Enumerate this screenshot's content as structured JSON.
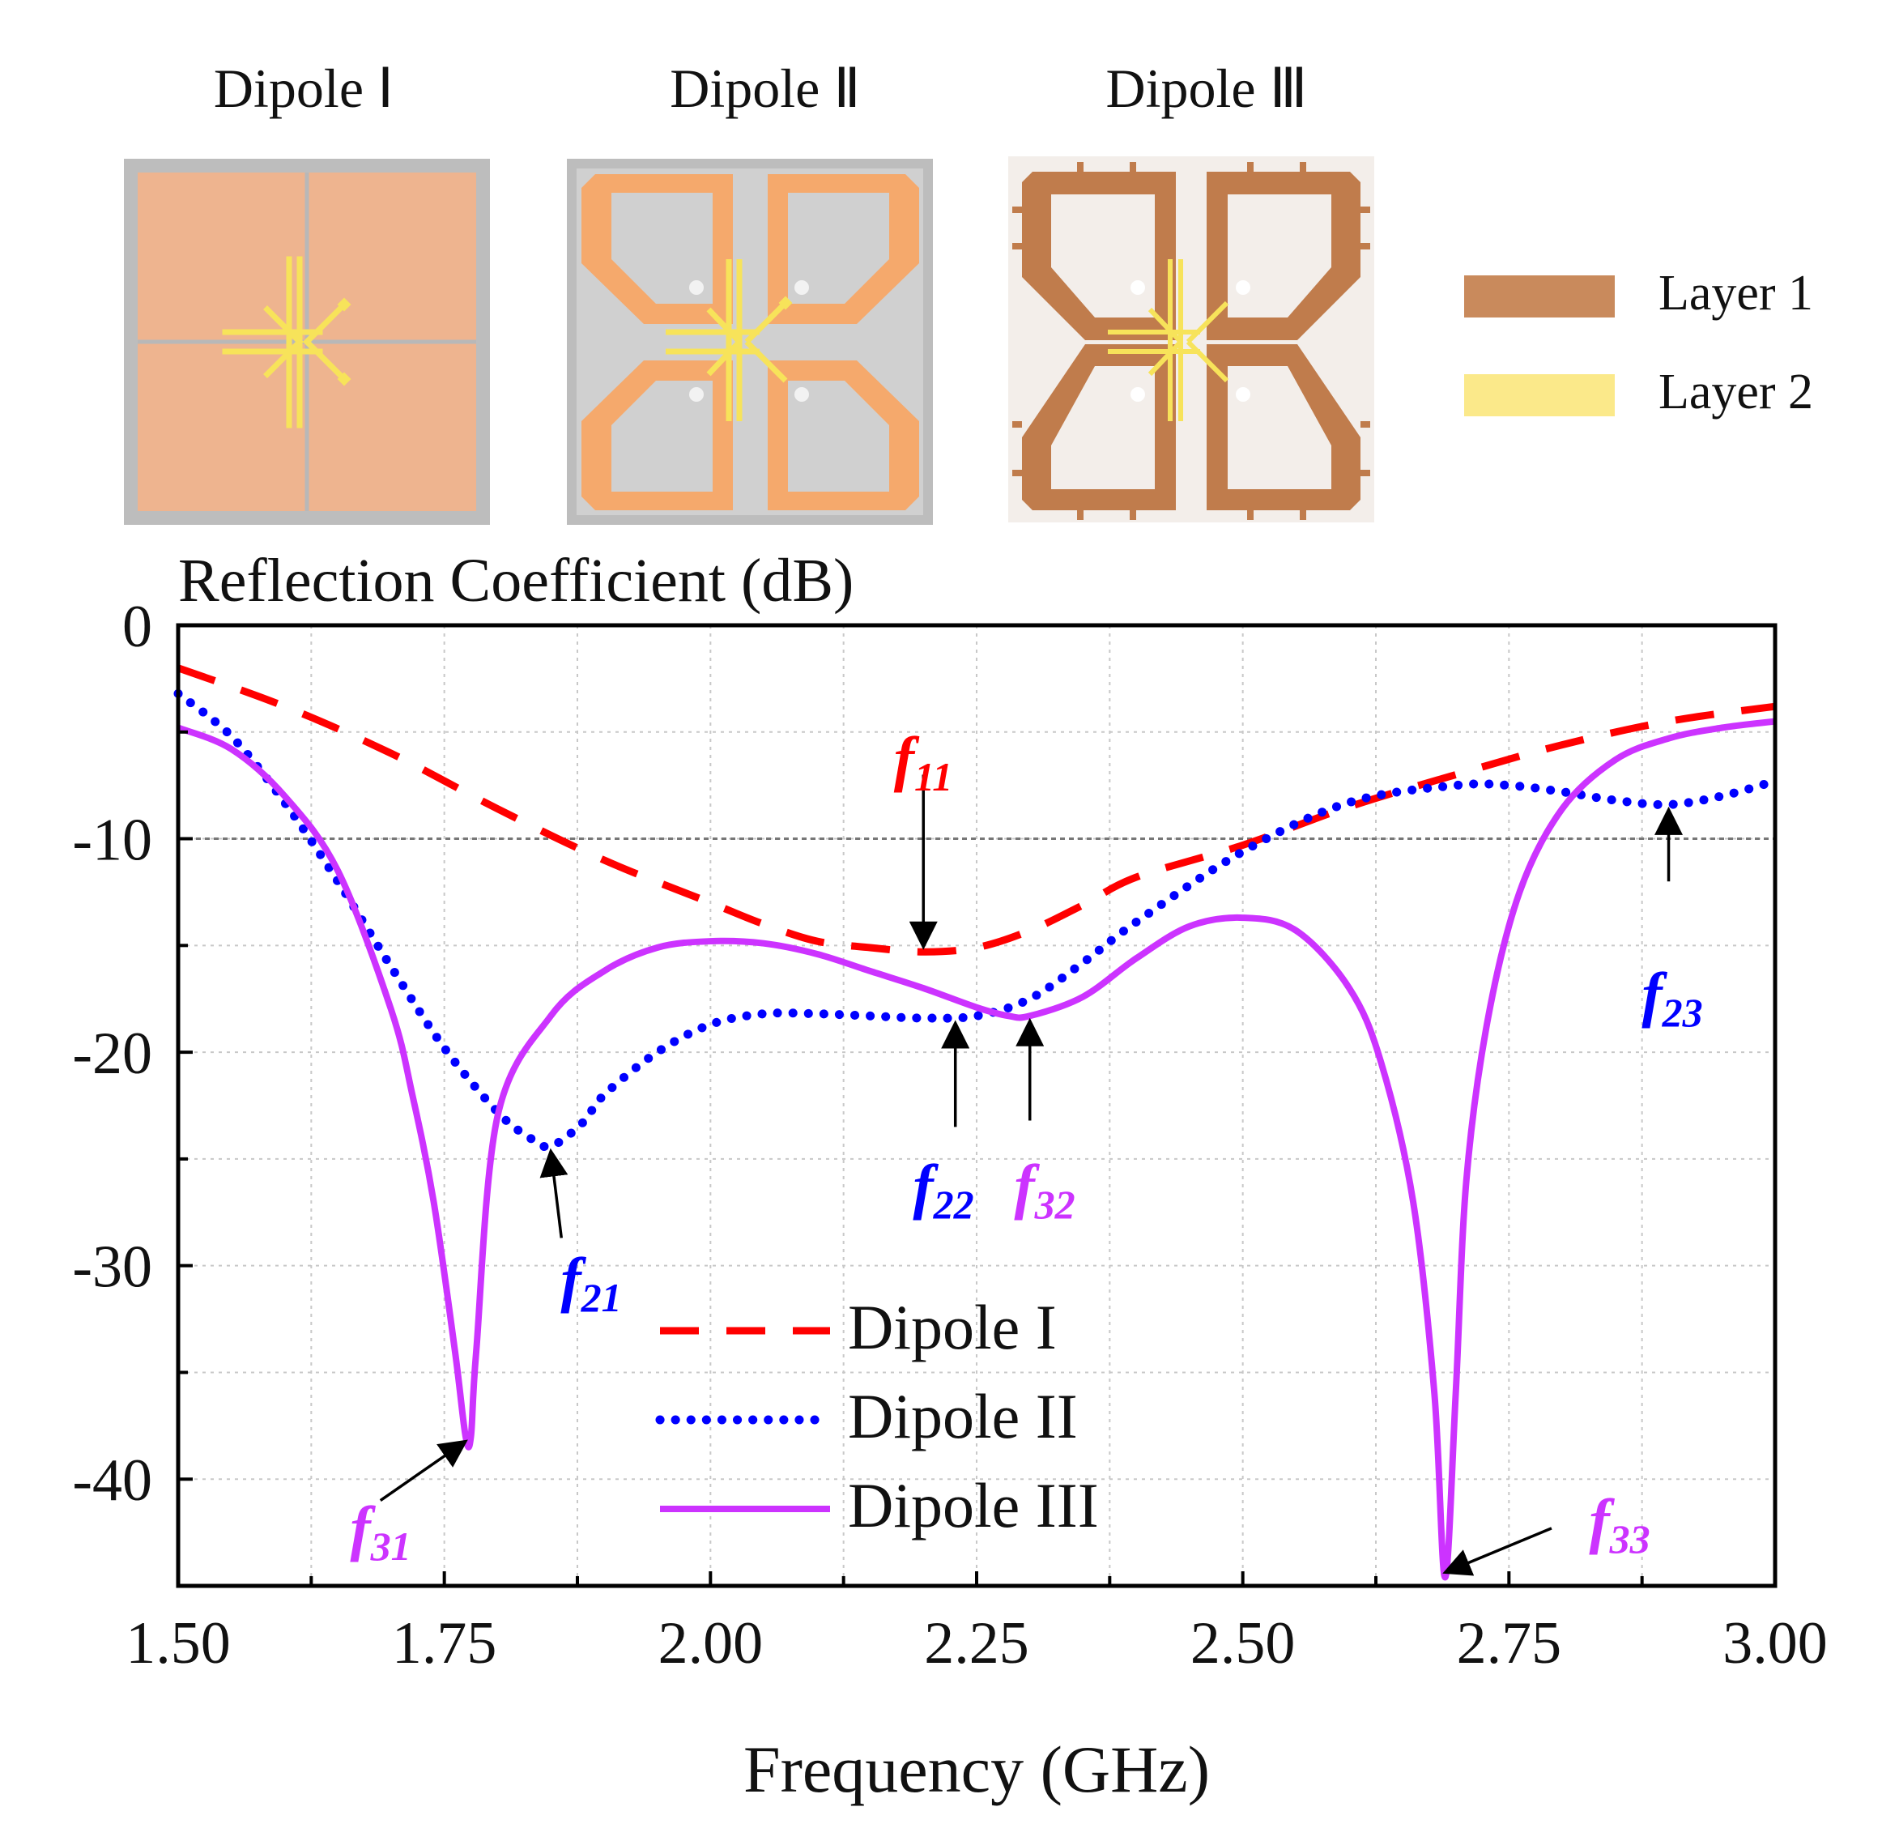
{
  "figure": {
    "panel_titles": [
      "Dipole Ⅰ",
      "Dipole Ⅱ",
      "Dipole Ⅲ"
    ],
    "layer_legend": [
      {
        "label": "Layer 1",
        "color": "#c98a5c"
      },
      {
        "label": "Layer 2",
        "color": "#fbe98a"
      }
    ],
    "colors": {
      "layer1_light": "#eeb48f",
      "layer1_orange": "#f5a96c",
      "layer1_dark": "#c07c4c",
      "layer2": "#f7e35a",
      "substrate_gray": "#bdbdbd",
      "substrate_light": "#f3eeea"
    }
  },
  "chart_data": {
    "type": "line",
    "title": "Reflection Coefficient (dB)",
    "xlabel": "Frequency (GHz)",
    "ylabel": "",
    "xlim": [
      1.5,
      3.0
    ],
    "ylim": [
      -45,
      0
    ],
    "xticks": [
      1.5,
      1.75,
      2.0,
      2.25,
      2.5,
      2.75,
      3.0
    ],
    "xtick_labels": [
      "1.50",
      "1.75",
      "2.00",
      "2.25",
      "2.50",
      "2.75",
      "3.00"
    ],
    "yticks": [
      0,
      -10,
      -20,
      -30,
      -40
    ],
    "ytick_labels": [
      "0",
      "-10",
      "-20",
      "-30",
      "-40"
    ],
    "grid": true,
    "reference_line": -10,
    "legend_position": "bottom-center",
    "series": [
      {
        "name": "Dipole I",
        "style": "dashed",
        "color": "#ff0000",
        "x": [
          1.5,
          1.6,
          1.7,
          1.8,
          1.9,
          2.0,
          2.05,
          2.1,
          2.15,
          2.2,
          2.25,
          2.3,
          2.35,
          2.4,
          2.5,
          2.6,
          2.7,
          2.8,
          2.9,
          3.0
        ],
        "y": [
          -2.0,
          -3.8,
          -6.0,
          -8.6,
          -11.0,
          -13.0,
          -14.0,
          -14.8,
          -15.1,
          -15.3,
          -15.1,
          -14.3,
          -13.1,
          -11.8,
          -10.3,
          -8.5,
          -7.0,
          -5.6,
          -4.5,
          -3.8
        ]
      },
      {
        "name": "Dipole II",
        "style": "dotted",
        "color": "#0000ff",
        "x": [
          1.5,
          1.55,
          1.6,
          1.65,
          1.7,
          1.75,
          1.8,
          1.83,
          1.85,
          1.88,
          1.9,
          1.95,
          2.0,
          2.05,
          2.1,
          2.15,
          2.2,
          2.25,
          2.3,
          2.35,
          2.4,
          2.5,
          2.6,
          2.7,
          2.75,
          2.8,
          2.85,
          2.9,
          2.95,
          3.0
        ],
        "y": [
          -3.2,
          -5.2,
          -8.3,
          -12.0,
          -16.0,
          -19.8,
          -22.8,
          -24.0,
          -24.4,
          -23.3,
          -22.0,
          -20.0,
          -18.7,
          -18.2,
          -18.2,
          -18.3,
          -18.4,
          -18.3,
          -17.5,
          -15.8,
          -13.9,
          -10.6,
          -8.3,
          -7.5,
          -7.5,
          -7.8,
          -8.2,
          -8.4,
          -8.0,
          -7.3
        ]
      },
      {
        "name": "Dipole III",
        "style": "solid",
        "color": "#cc33ff",
        "x": [
          1.5,
          1.55,
          1.6,
          1.65,
          1.7,
          1.72,
          1.74,
          1.76,
          1.77,
          1.775,
          1.78,
          1.8,
          1.85,
          1.9,
          1.95,
          2.0,
          2.05,
          2.1,
          2.15,
          2.2,
          2.25,
          2.28,
          2.3,
          2.35,
          2.4,
          2.45,
          2.5,
          2.55,
          2.6,
          2.63,
          2.66,
          2.68,
          2.69,
          2.7,
          2.71,
          2.73,
          2.76,
          2.8,
          2.85,
          2.9,
          2.95,
          3.0
        ],
        "y": [
          -4.8,
          -5.8,
          -8.0,
          -11.5,
          -18.0,
          -22.0,
          -27.0,
          -34.0,
          -38.0,
          -38.0,
          -34.0,
          -23.0,
          -18.3,
          -16.2,
          -15.1,
          -14.8,
          -14.9,
          -15.4,
          -16.2,
          -17.0,
          -17.9,
          -18.3,
          -18.3,
          -17.4,
          -15.6,
          -14.1,
          -13.7,
          -14.3,
          -17.0,
          -20.5,
          -27.0,
          -36.0,
          -44.6,
          -36.0,
          -26.0,
          -18.5,
          -12.5,
          -8.6,
          -6.3,
          -5.3,
          -4.8,
          -4.5
        ]
      }
    ],
    "annotations": [
      {
        "label": "f11",
        "main": "f",
        "sub": "11",
        "color": "#ff0000",
        "x": 2.2,
        "y": -15.3
      },
      {
        "label": "f21",
        "main": "f",
        "sub": "21",
        "color": "#0000ff",
        "x": 1.85,
        "y": -24.4
      },
      {
        "label": "f22",
        "main": "f",
        "sub": "22",
        "color": "#0000ff",
        "x": 2.23,
        "y": -18.4
      },
      {
        "label": "f23",
        "main": "f",
        "sub": "23",
        "color": "#0000ff",
        "x": 2.9,
        "y": -8.4
      },
      {
        "label": "f31",
        "main": "f",
        "sub": "31",
        "color": "#cc33ff",
        "x": 1.77,
        "y": -38.0
      },
      {
        "label": "f32",
        "main": "f",
        "sub": "32",
        "color": "#cc33ff",
        "x": 2.3,
        "y": -18.3
      },
      {
        "label": "f33",
        "main": "f",
        "sub": "33",
        "color": "#cc33ff",
        "x": 2.69,
        "y": -44.6
      }
    ]
  }
}
